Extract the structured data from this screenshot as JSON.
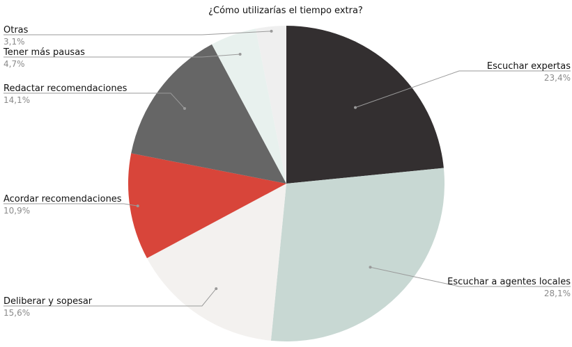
{
  "chart_data": {
    "type": "pie",
    "title": "¿Cómo utilizarías el tiempo extra?",
    "slices": [
      {
        "label": "Escuchar expertas",
        "value": 23.4,
        "value_label": "23,4%",
        "color": "#332f30"
      },
      {
        "label": "Escuchar a agentes locales",
        "value": 28.1,
        "value_label": "28,1%",
        "color": "#c8d8d3"
      },
      {
        "label": "Deliberar y sopesar",
        "value": 15.6,
        "value_label": "15,6%",
        "color": "#f3f1ef"
      },
      {
        "label": "Acordar recomendaciones",
        "value": 10.9,
        "value_label": "10,9%",
        "color": "#d8453a"
      },
      {
        "label": "Redactar recomendaciones",
        "value": 14.1,
        "value_label": "14,1%",
        "color": "#666666"
      },
      {
        "label": "Tener más pausas",
        "value": 4.7,
        "value_label": "4,7%",
        "color": "#e8f1ee"
      },
      {
        "label": "Otras",
        "value": 3.1,
        "value_label": "3,1%",
        "color": "#efefef"
      }
    ]
  }
}
